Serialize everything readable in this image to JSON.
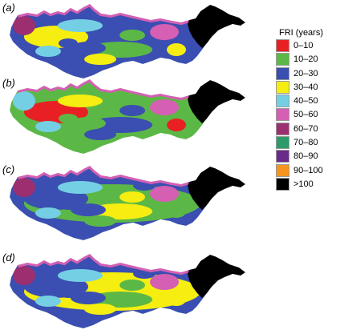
{
  "panels": [
    {
      "label": "(a)",
      "colors": [
        "#3a4fb1",
        "#3a4fb1",
        "#f5ee10",
        "#5cb846",
        "#74cfe4",
        "#d45fb3",
        "#9c2f6f",
        "#f5ee10",
        "#3a4fb1",
        "#5cb846",
        "#74cfe4",
        "#3a4fb1",
        "#f5ee10"
      ]
    },
    {
      "label": "(b)",
      "colors": [
        "#5cb846",
        "#5cb846",
        "#e82024",
        "#3a4fb1",
        "#f5ee10",
        "#d45fb3",
        "#74cfe4",
        "#e82024",
        "#5cb846",
        "#3a4fb1",
        "#74cfe4",
        "#5cb846",
        "#3a4fb1"
      ]
    },
    {
      "label": "(c)",
      "colors": [
        "#3a4fb1",
        "#5cb846",
        "#3a4fb1",
        "#f5ee10",
        "#74cfe4",
        "#d45fb3",
        "#9c2f6f",
        "#5cb846",
        "#3a4fb1",
        "#f5ee10",
        "#74cfe4",
        "#3a4fb1",
        "#5cb846"
      ]
    },
    {
      "label": "(d)",
      "colors": [
        "#3a4fb1",
        "#f5ee10",
        "#3a4fb1",
        "#5cb846",
        "#74cfe4",
        "#d45fb3",
        "#9c2f6f",
        "#f5ee10",
        "#3a4fb1",
        "#5cb846",
        "#74cfe4",
        "#3a4fb1",
        "#f5ee10"
      ]
    }
  ],
  "legend": {
    "title": "FRI (years)",
    "items": [
      {
        "label": "0–10",
        "color": "#e82024"
      },
      {
        "label": "10–20",
        "color": "#5cb846"
      },
      {
        "label": "20–30",
        "color": "#3a4fb1"
      },
      {
        "label": "30–40",
        "color": "#f5ee10"
      },
      {
        "label": "40–50",
        "color": "#74cfe4"
      },
      {
        "label": "50–60",
        "color": "#d45fb3"
      },
      {
        "label": "60–70",
        "color": "#9c2f6f"
      },
      {
        "label": "70–80",
        "color": "#2c9a6a"
      },
      {
        "label": "80–90",
        "color": "#6a2a8c"
      },
      {
        "label": "90–100",
        "color": "#f7941d"
      },
      {
        "label": ">100",
        "color": "#000000"
      }
    ]
  }
}
